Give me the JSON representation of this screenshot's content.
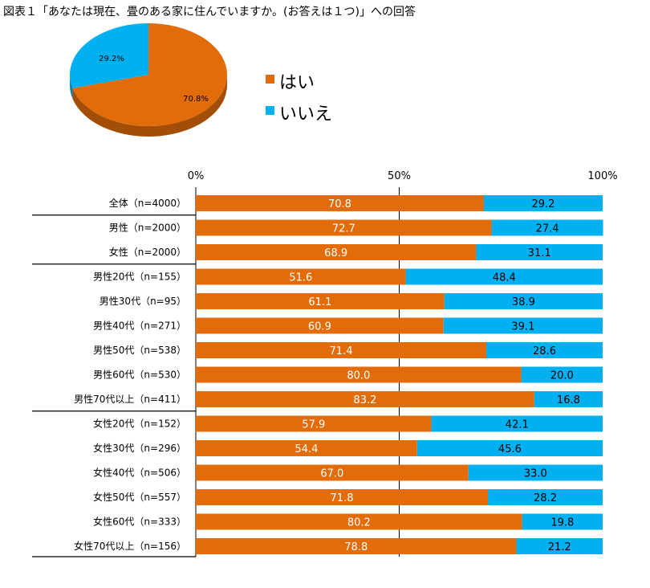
{
  "chart_data": [
    {
      "type": "pie",
      "title": "図表１「あなたは現在、畳のある家に住んでいますか。(お答えは１つ)」への回答",
      "series": [
        {
          "name": "はい",
          "value": 70.8,
          "label": "70.8%",
          "color": "#e36c0a"
        },
        {
          "name": "いいえ",
          "value": 29.2,
          "label": "29.2%",
          "color": "#00b0f0"
        }
      ],
      "legend": [
        "はい",
        "いいえ"
      ]
    },
    {
      "type": "bar",
      "orientation": "horizontal-stacked-100",
      "xticks": [
        "0%",
        "50%",
        "100%"
      ],
      "xlim": [
        0,
        100
      ],
      "categories": [
        "全体（n=4000）",
        "男性（n=2000）",
        "女性（n=2000）",
        "男性20代（n=155）",
        "男性30代（n=95）",
        "男性40代（n=271）",
        "男性50代（n=538）",
        "男性60代（n=530）",
        "男性70代以上（n=411）",
        "女性20代（n=152）",
        "女性30代（n=296）",
        "女性40代（n=506）",
        "女性50代（n=557）",
        "女性60代（n=333）",
        "女性70代以上（n=156）"
      ],
      "series": [
        {
          "name": "はい",
          "color": "#e36c0a",
          "values": [
            70.8,
            72.7,
            68.9,
            51.6,
            61.1,
            60.9,
            71.4,
            80.0,
            83.2,
            57.9,
            54.4,
            67.0,
            71.8,
            80.2,
            78.8
          ],
          "labels": [
            "70.8",
            "72.7",
            "68.9",
            "51.6",
            "61.1",
            "60.9",
            "71.4",
            "80.0",
            "83.2",
            "57.9",
            "54.4",
            "67.0",
            "71.8",
            "80.2",
            "78.8"
          ]
        },
        {
          "name": "いいえ",
          "color": "#00b0f0",
          "values": [
            29.2,
            27.4,
            31.1,
            48.4,
            38.9,
            39.1,
            28.6,
            20.0,
            16.8,
            42.1,
            45.6,
            33.0,
            28.2,
            19.8,
            21.2
          ],
          "labels": [
            "29.2",
            "27.4",
            "31.1",
            "48.4",
            "38.9",
            "39.1",
            "28.6",
            "20.0",
            "16.8",
            "42.1",
            "45.6",
            "33.0",
            "28.2",
            "19.8",
            "21.2"
          ]
        }
      ],
      "group_breaks_after": [
        0,
        2,
        8
      ]
    }
  ]
}
